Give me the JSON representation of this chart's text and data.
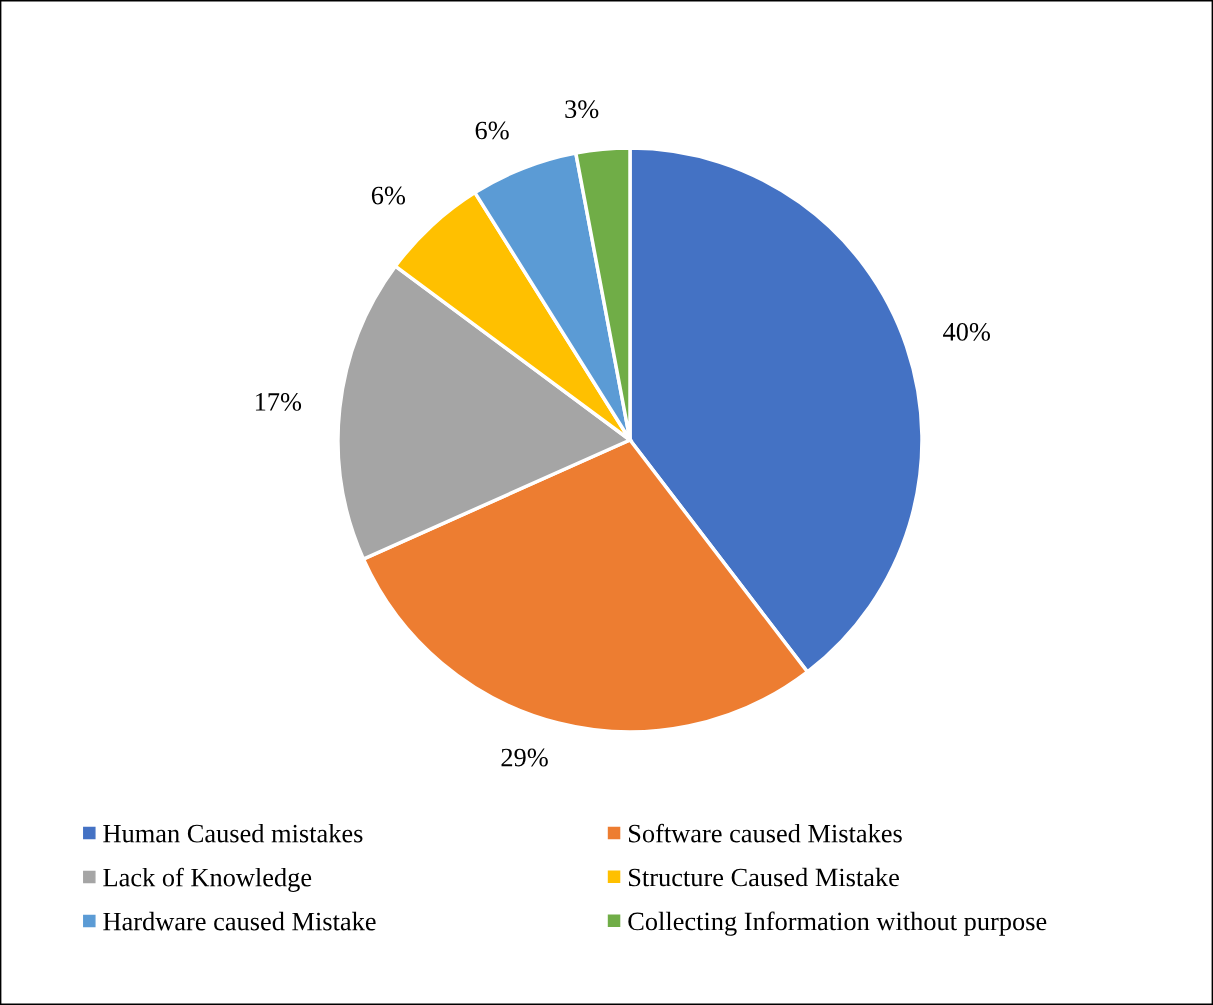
{
  "chart_data": {
    "type": "pie",
    "categories": [
      "Human Caused mistakes",
      "Software caused Mistakes",
      "Lack of Knowledge",
      "Structure Caused Mistake",
      "Hardware caused Mistake",
      "Collecting Information without purpose"
    ],
    "values": [
      40,
      29,
      17,
      6,
      6,
      3
    ],
    "value_labels": [
      "40%",
      "29%",
      "17%",
      "6%",
      "6%",
      "3%"
    ],
    "colors": [
      "#4472c4",
      "#ed7d31",
      "#a5a5a5",
      "#ffc000",
      "#5b9bd5",
      "#70ad47"
    ],
    "legend": "bottom"
  }
}
